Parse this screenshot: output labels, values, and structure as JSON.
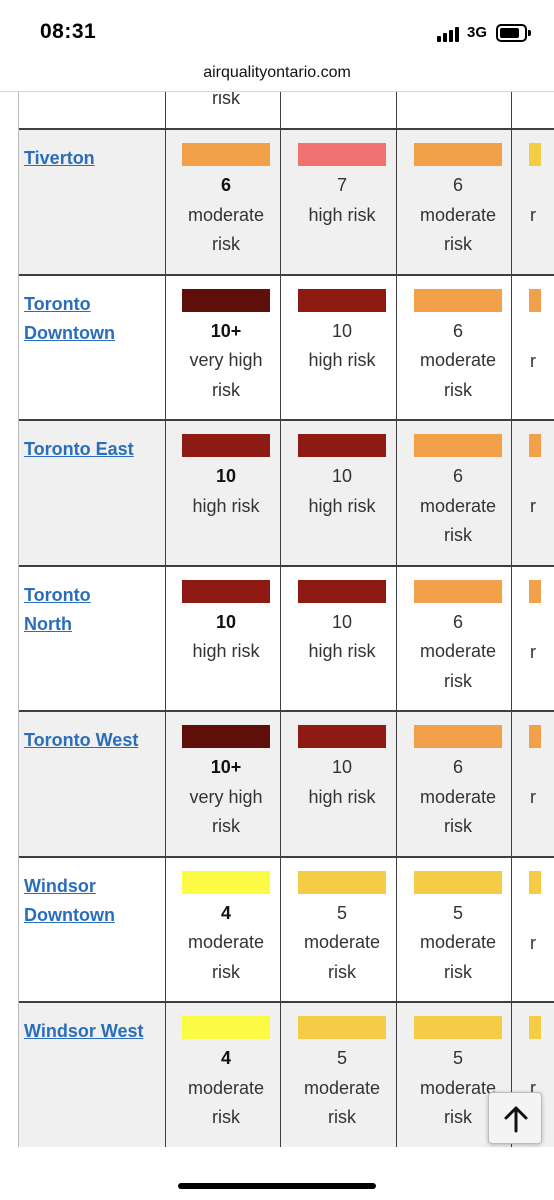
{
  "status_bar": {
    "time": "08:31",
    "network": "3G"
  },
  "browser": {
    "url": "airqualityontario.com"
  },
  "top_partial": {
    "label": "risk"
  },
  "colors": {
    "very_high": "#5e0f0a",
    "high_dark": "#8e1a14",
    "high_pink": "#f07272",
    "moderate_orange": "#f3a04a",
    "moderate_gold": "#f4cc45",
    "low_yellow": "#fbfb46",
    "link": "#2a6ebb"
  },
  "rows": [
    {
      "city": [
        "Tiverton"
      ],
      "cells": [
        {
          "value": "6",
          "risk": "moderate risk",
          "color": "moderate_orange"
        },
        {
          "value": "7",
          "risk": "high risk",
          "color": "high_pink"
        },
        {
          "value": "6",
          "risk": "moderate risk",
          "color": "moderate_orange"
        }
      ],
      "edge_color": "moderate_gold",
      "edge_letter": "r"
    },
    {
      "city": [
        "Toronto",
        "Downtown"
      ],
      "cells": [
        {
          "value": "10+",
          "risk": "very high risk",
          "color": "very_high"
        },
        {
          "value": "10",
          "risk": "high risk",
          "color": "high_dark"
        },
        {
          "value": "6",
          "risk": "moderate risk",
          "color": "moderate_orange"
        }
      ],
      "edge_color": "moderate_orange",
      "edge_letter": "r"
    },
    {
      "city": [
        "Toronto East"
      ],
      "cells": [
        {
          "value": "10",
          "risk": "high risk",
          "color": "high_dark"
        },
        {
          "value": "10",
          "risk": "high risk",
          "color": "high_dark"
        },
        {
          "value": "6",
          "risk": "moderate risk",
          "color": "moderate_orange"
        }
      ],
      "edge_color": "moderate_orange",
      "edge_letter": "r"
    },
    {
      "city": [
        "Toronto",
        "North"
      ],
      "cells": [
        {
          "value": "10",
          "risk": "high risk",
          "color": "high_dark"
        },
        {
          "value": "10",
          "risk": "high risk",
          "color": "high_dark"
        },
        {
          "value": "6",
          "risk": "moderate risk",
          "color": "moderate_orange"
        }
      ],
      "edge_color": "moderate_orange",
      "edge_letter": "r"
    },
    {
      "city": [
        "Toronto West"
      ],
      "cells": [
        {
          "value": "10+",
          "risk": "very high risk",
          "color": "very_high"
        },
        {
          "value": "10",
          "risk": "high risk",
          "color": "high_dark"
        },
        {
          "value": "6",
          "risk": "moderate risk",
          "color": "moderate_orange"
        }
      ],
      "edge_color": "moderate_orange",
      "edge_letter": "r"
    },
    {
      "city": [
        "Windsor",
        "Downtown"
      ],
      "cells": [
        {
          "value": "4",
          "risk": "moderate risk",
          "color": "low_yellow"
        },
        {
          "value": "5",
          "risk": "moderate risk",
          "color": "moderate_gold"
        },
        {
          "value": "5",
          "risk": "moderate risk",
          "color": "moderate_gold"
        }
      ],
      "edge_color": "moderate_gold",
      "edge_letter": "r"
    },
    {
      "city": [
        "Windsor West"
      ],
      "cells": [
        {
          "value": "4",
          "risk": "moderate risk",
          "color": "low_yellow"
        },
        {
          "value": "5",
          "risk": "moderate risk",
          "color": "moderate_gold"
        },
        {
          "value": "5",
          "risk": "moderate risk",
          "color": "moderate_gold"
        }
      ],
      "edge_color": "moderate_gold",
      "edge_letter": "r"
    }
  ]
}
